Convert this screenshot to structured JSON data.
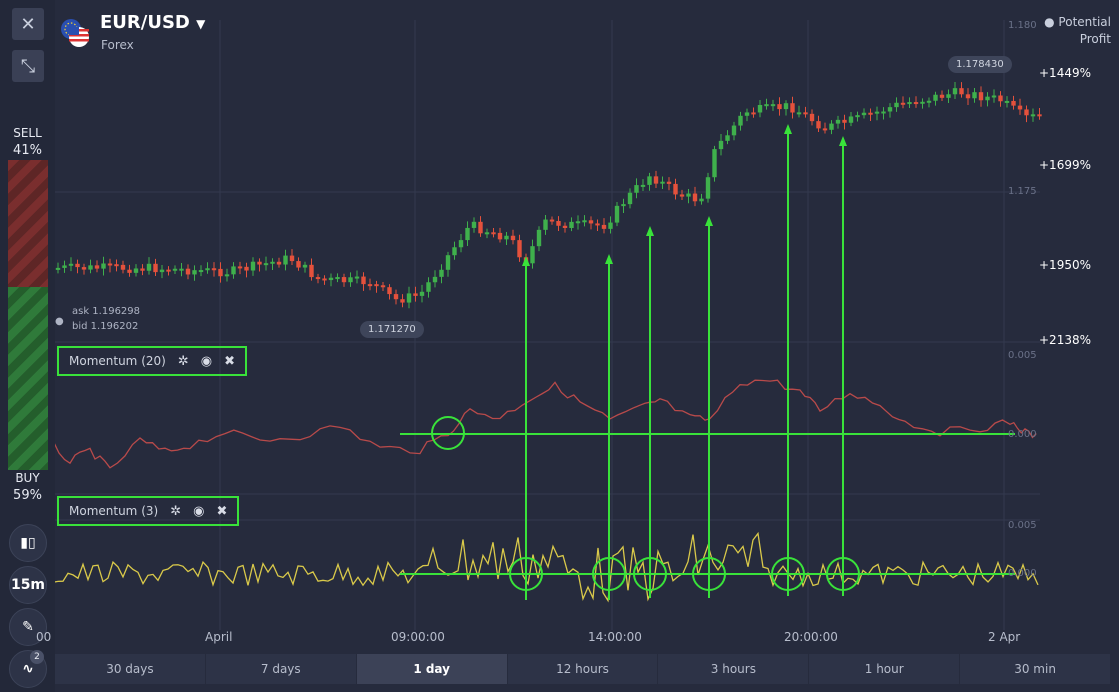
{
  "header": {
    "pair": "EUR/USD",
    "category": "Forex"
  },
  "left": {
    "sell_label": "SELL",
    "sell_pct": "41%",
    "buy_label": "BUY",
    "buy_pct": "59%",
    "timeframe": "15m",
    "indicator_badge": "2"
  },
  "profit": {
    "title": "Potential",
    "title2": "Profit",
    "levels": [
      "+1449%",
      "+1699%",
      "+1950%",
      "+2138%"
    ]
  },
  "price_axis": {
    "top": "1.180",
    "mid": "1.175",
    "m1": "0.005",
    "m1b": "0.000",
    "m2": "0.005",
    "m2b": "0.000"
  },
  "prices": {
    "high": "1.178430",
    "low": "1.171270",
    "ask": "ask 1.196298",
    "bid": "bid 1.196202"
  },
  "indicators": [
    {
      "name": "Momentum (20)"
    },
    {
      "name": "Momentum (3)"
    }
  ],
  "time_axis": [
    "00",
    "April",
    "09:00:00",
    "14:00:00",
    "20:00:00",
    "2 Apr"
  ],
  "timeframes": [
    {
      "label": "30 days",
      "selected": false
    },
    {
      "label": "7 days",
      "selected": false
    },
    {
      "label": "1 day",
      "selected": true
    },
    {
      "label": "12 hours",
      "selected": false
    },
    {
      "label": "3 hours",
      "selected": false
    },
    {
      "label": "1 hour",
      "selected": false
    },
    {
      "label": "30 min",
      "selected": false
    }
  ],
  "colors": {
    "bull": "#3fb04c",
    "bear": "#e4513c",
    "momentum20": "#c0504d",
    "momentum3": "#d9c94a",
    "annotation": "#39e23a"
  }
}
